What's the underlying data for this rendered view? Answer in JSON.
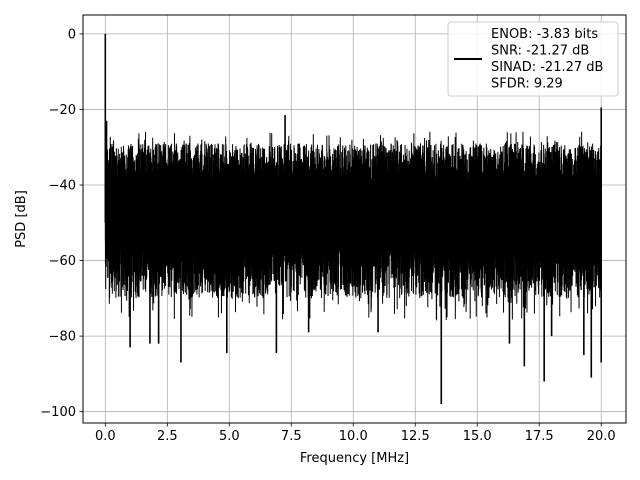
{
  "chart_data": {
    "type": "line",
    "title": "",
    "xlabel": "Frequency [MHz]",
    "ylabel": "PSD [dB]",
    "xlim": [
      -0.9,
      21.0
    ],
    "ylim": [
      -103,
      5
    ],
    "grid": true,
    "legend_placement": "top-right",
    "x_ticks": [
      0.0,
      2.5,
      5.0,
      7.5,
      10.0,
      12.5,
      15.0,
      17.5,
      20.0
    ],
    "x_tick_labels": [
      "0.0",
      "2.5",
      "5.0",
      "7.5",
      "10.0",
      "12.5",
      "15.0",
      "17.5",
      "20.0"
    ],
    "y_ticks": [
      0,
      -20,
      -40,
      -60,
      -80,
      -100
    ],
    "y_tick_labels": [
      "0",
      "−20",
      "−40",
      "−60",
      "−80",
      "−100"
    ],
    "line_color": "#000000",
    "series": [
      {
        "legend_lines": [
          "ENOB: -3.83 bits",
          "SNR: -21.27 dB",
          "SINAD: -21.27 dB",
          "SFDR: 9.29"
        ],
        "noise_band": {
          "x_range": [
            0.0,
            20.0
          ],
          "upper_db": -29,
          "lower_db": -70
        },
        "spikes": [
          {
            "x": 0.0,
            "y": 0
          },
          {
            "x": 0.05,
            "y": -23
          },
          {
            "x": 7.25,
            "y": -21.5
          },
          {
            "x": 20.0,
            "y": -19.5
          },
          {
            "x": 13.55,
            "y": -98
          },
          {
            "x": 17.7,
            "y": -92
          },
          {
            "x": 19.6,
            "y": -91
          },
          {
            "x": 3.05,
            "y": -87
          },
          {
            "x": 20.0,
            "y": -87
          },
          {
            "x": 16.9,
            "y": -88
          },
          {
            "x": 4.9,
            "y": -84.5
          },
          {
            "x": 6.9,
            "y": -84.5
          },
          {
            "x": 1.0,
            "y": -83
          },
          {
            "x": 1.8,
            "y": -82
          },
          {
            "x": 2.15,
            "y": -82
          },
          {
            "x": 16.3,
            "y": -82
          },
          {
            "x": 19.3,
            "y": -85
          },
          {
            "x": 18.0,
            "y": -80
          },
          {
            "x": 8.2,
            "y": -79
          },
          {
            "x": 11.0,
            "y": -79
          }
        ]
      }
    ]
  }
}
